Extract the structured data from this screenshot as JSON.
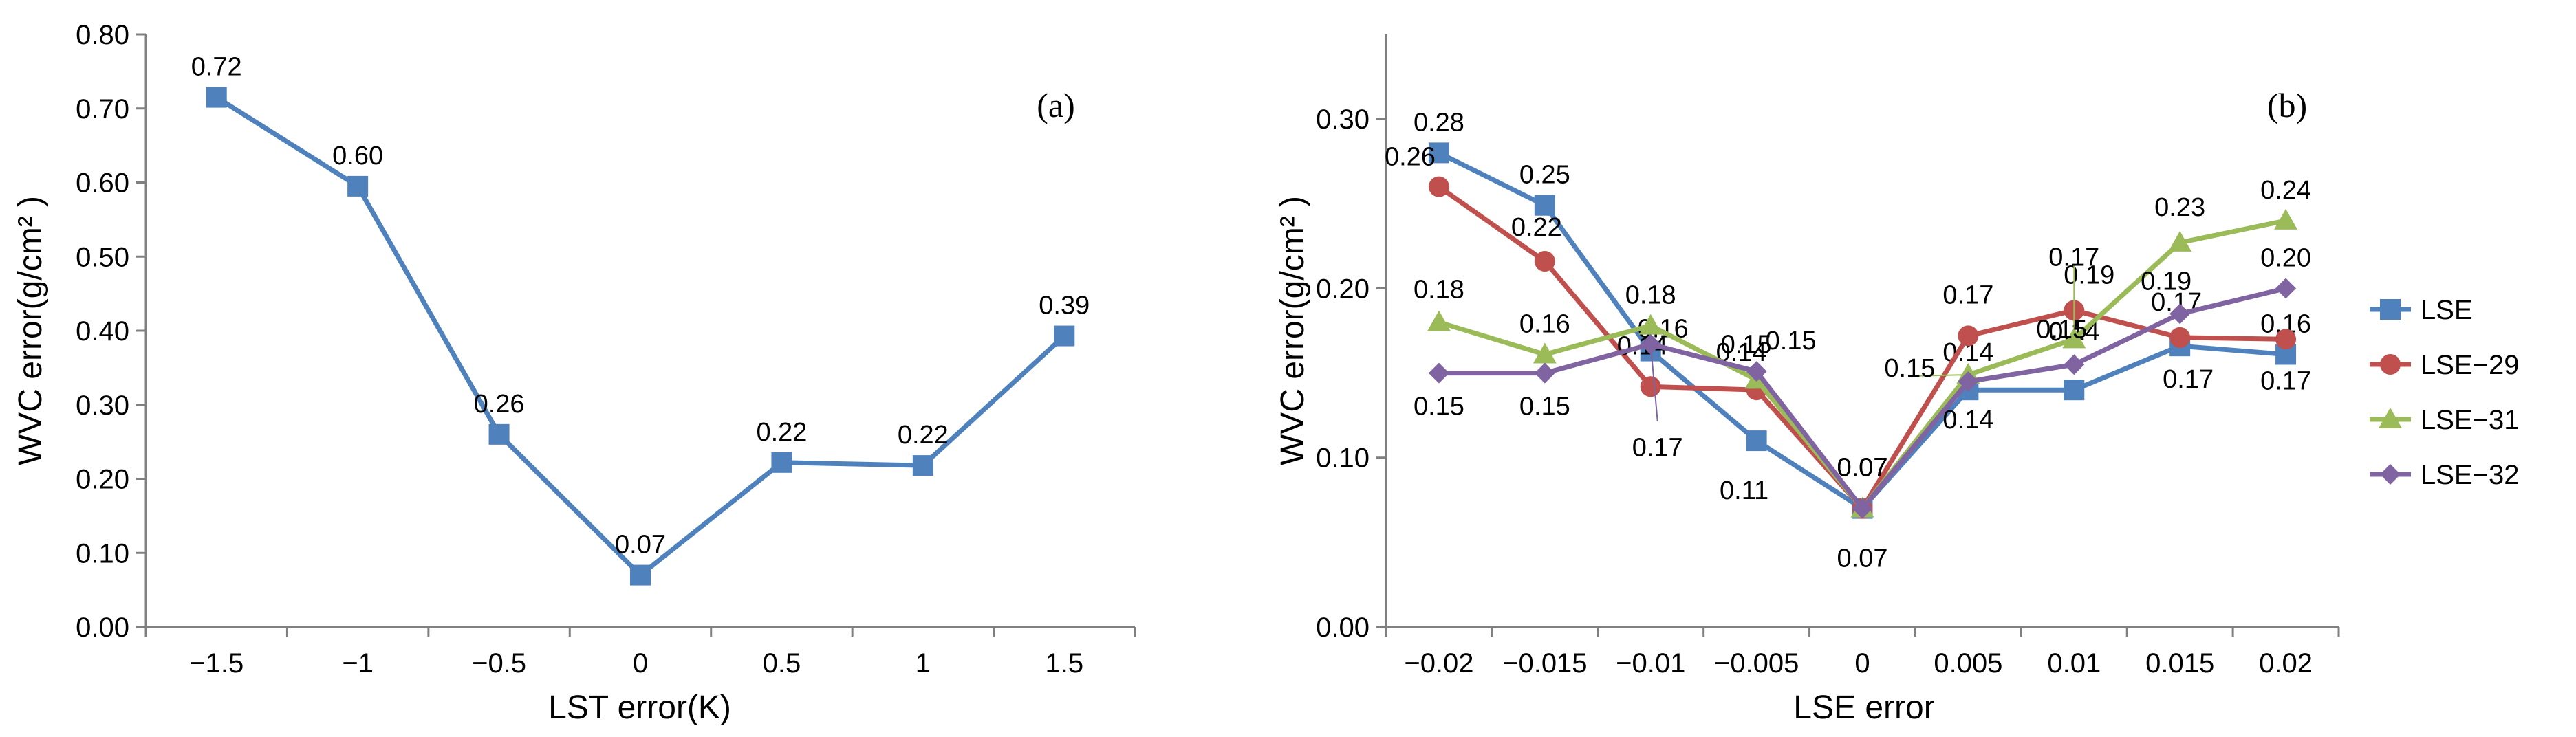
{
  "chart_data": [
    {
      "type": "line",
      "panel_label": "(a)",
      "xlabel": "LST error(K)",
      "ylabel": "WVC error(g/cm² )",
      "categories": [
        "−1.5",
        "−1",
        "−0.5",
        "0",
        "0.5",
        "1",
        "1.5"
      ],
      "ylim": [
        0,
        0.8
      ],
      "yticks": [
        "0.00",
        "0.10",
        "0.20",
        "0.30",
        "0.40",
        "0.50",
        "0.60",
        "0.70",
        "0.80"
      ],
      "grid": false,
      "series": [
        {
          "name": "WVC error",
          "color": "#4F81BD",
          "marker": "square",
          "values": [
            0.715,
            0.595,
            0.26,
            0.07,
            0.222,
            0.218,
            0.393
          ],
          "labels": [
            "0.72",
            "0.60",
            "0.26",
            "0.07",
            "0.22",
            "0.22",
            "0.39"
          ]
        }
      ]
    },
    {
      "type": "line",
      "panel_label": "(b)",
      "xlabel": "LSE error",
      "ylabel": "WVC error(g/cm² )",
      "categories": [
        "−0.02",
        "−0.015",
        "−0.01",
        "−0.005",
        "0",
        "0.005",
        "0.01",
        "0.015",
        "0.02"
      ],
      "ylim": [
        0,
        0.35
      ],
      "yticks": [
        "0.00",
        "0.10",
        "0.20",
        "0.30"
      ],
      "grid": false,
      "legend_position": "right",
      "series": [
        {
          "name": "LSE",
          "color": "#4F81BD",
          "marker": "square",
          "values": [
            0.28,
            0.249,
            0.163,
            0.11,
            0.07,
            0.14,
            0.14,
            0.166,
            0.161
          ],
          "labels": [
            "0.28",
            "0.25",
            "0.16",
            "0.11",
            "0.07",
            "0.14",
            "0.14",
            "0.17",
            "0.16"
          ]
        },
        {
          "name": "LSE−29",
          "color": "#C0504D",
          "marker": "circle",
          "values": [
            0.26,
            0.216,
            0.142,
            0.14,
            0.07,
            0.172,
            0.187,
            0.171,
            0.17
          ],
          "labels": [
            "0.26",
            "0.22",
            "0.14",
            "0.14",
            "0.07",
            "0.17",
            "0.19",
            "0.17",
            "0.17"
          ]
        },
        {
          "name": "LSE−31",
          "color": "#9BBB59",
          "marker": "triangle",
          "values": [
            0.18,
            0.161,
            0.178,
            0.146,
            0.07,
            0.149,
            0.17,
            0.227,
            0.24
          ],
          "labels": [
            "0.18",
            "0.16",
            "0.18",
            "0.15",
            "0.07",
            "0.15",
            "0.17",
            "0.23",
            "0.24"
          ]
        },
        {
          "name": "LSE−32",
          "color": "#8064A2",
          "marker": "diamond",
          "values": [
            0.15,
            0.15,
            0.167,
            0.151,
            0.07,
            0.145,
            0.155,
            0.185,
            0.2
          ],
          "labels": [
            "0.15",
            "0.15",
            "0.17",
            "0.15",
            "0.07",
            "0.14",
            "0.15",
            "0.19",
            "0.20"
          ]
        }
      ]
    }
  ]
}
